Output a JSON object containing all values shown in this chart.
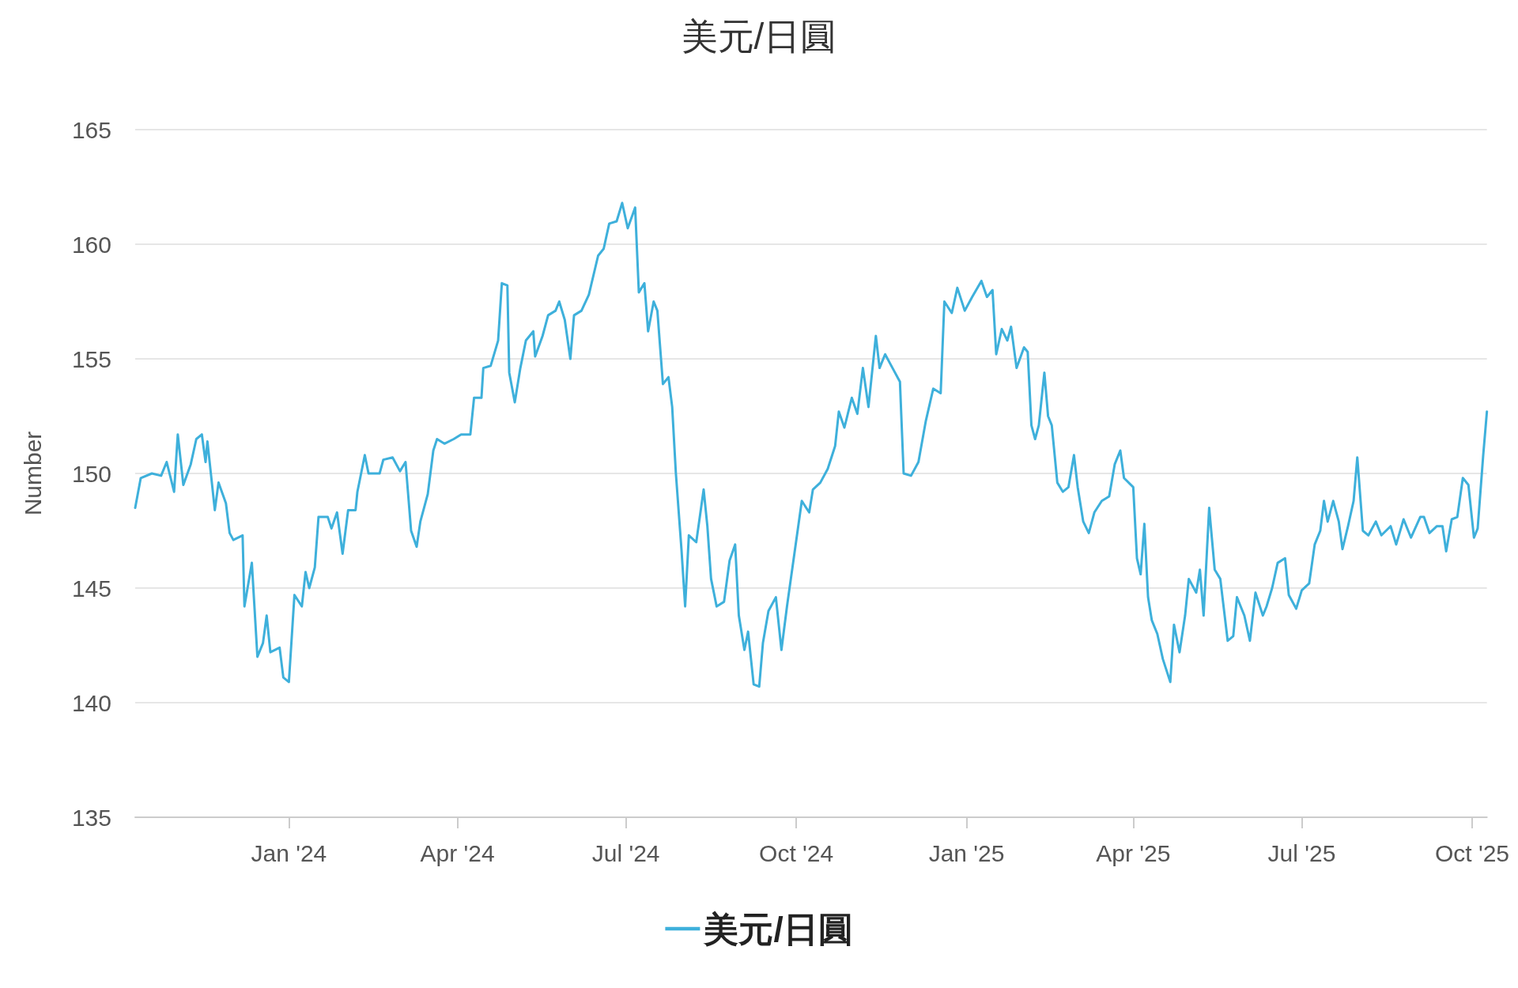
{
  "chart_data": {
    "type": "line",
    "title": "美元/日圓",
    "ylabel": "Number",
    "xlim": [
      "2023-10-10",
      "2025-10-09"
    ],
    "xticks": [
      {
        "value": "2024-01-01",
        "label": "Jan '24"
      },
      {
        "value": "2024-04-01",
        "label": "Apr '24"
      },
      {
        "value": "2024-07-01",
        "label": "Jul '24"
      },
      {
        "value": "2024-10-01",
        "label": "Oct '24"
      },
      {
        "value": "2025-01-01",
        "label": "Jan '25"
      },
      {
        "value": "2025-04-01",
        "label": "Apr '25"
      },
      {
        "value": "2025-07-01",
        "label": "Jul '25"
      },
      {
        "value": "2025-10-01",
        "label": "Oct '25"
      }
    ],
    "ylim": [
      135,
      165
    ],
    "yticks": [
      135,
      140,
      145,
      150,
      155,
      160,
      165
    ],
    "grid": "y",
    "legend": "bottom",
    "marker": "none",
    "line_style": "solid",
    "series": [
      {
        "name": "美元/日圓",
        "color": "#3eb0db",
        "x": [
          "2023-10-10",
          "2023-10-13",
          "2023-10-19",
          "2023-10-24",
          "2023-10-27",
          "2023-10-31",
          "2023-11-02",
          "2023-11-05",
          "2023-11-09",
          "2023-11-12",
          "2023-11-15",
          "2023-11-17",
          "2023-11-18",
          "2023-11-22",
          "2023-11-24",
          "2023-11-28",
          "2023-11-30",
          "2023-12-02",
          "2023-12-07",
          "2023-12-08",
          "2023-12-12",
          "2023-12-15",
          "2023-12-18",
          "2023-12-20",
          "2023-12-22",
          "2023-12-27",
          "2023-12-29",
          "2024-01-01",
          "2024-01-04",
          "2024-01-08",
          "2024-01-10",
          "2024-01-12",
          "2024-01-15",
          "2024-01-17",
          "2024-01-22",
          "2024-01-24",
          "2024-01-27",
          "2024-01-30",
          "2024-02-02",
          "2024-02-06",
          "2024-02-07",
          "2024-02-11",
          "2024-02-13",
          "2024-02-19",
          "2024-02-21",
          "2024-02-26",
          "2024-03-01",
          "2024-03-04",
          "2024-03-07",
          "2024-03-10",
          "2024-03-12",
          "2024-03-16",
          "2024-03-19",
          "2024-03-21",
          "2024-03-25",
          "2024-03-30",
          "2024-04-03",
          "2024-04-08",
          "2024-04-10",
          "2024-04-14",
          "2024-04-15",
          "2024-04-19",
          "2024-04-23",
          "2024-04-25",
          "2024-04-28",
          "2024-04-29",
          "2024-05-02",
          "2024-05-05",
          "2024-05-08",
          "2024-05-12",
          "2024-05-13",
          "2024-05-17",
          "2024-05-20",
          "2024-05-24",
          "2024-05-26",
          "2024-05-29",
          "2024-06-01",
          "2024-06-03",
          "2024-06-07",
          "2024-06-11",
          "2024-06-16",
          "2024-06-19",
          "2024-06-22",
          "2024-06-26",
          "2024-06-29",
          "2024-07-02",
          "2024-07-06",
          "2024-07-08",
          "2024-07-11",
          "2024-07-13",
          "2024-07-16",
          "2024-07-18",
          "2024-07-21",
          "2024-07-24",
          "2024-07-26",
          "2024-07-28",
          "2024-07-31",
          "2024-08-02",
          "2024-08-04",
          "2024-08-08",
          "2024-08-12",
          "2024-08-14",
          "2024-08-16",
          "2024-08-19",
          "2024-08-23",
          "2024-08-26",
          "2024-08-29",
          "2024-08-31",
          "2024-09-03",
          "2024-09-05",
          "2024-09-08",
          "2024-09-11",
          "2024-09-13",
          "2024-09-16",
          "2024-09-20",
          "2024-09-23",
          "2024-09-26",
          "2024-10-04",
          "2024-10-08",
          "2024-10-10",
          "2024-10-14",
          "2024-10-18",
          "2024-10-22",
          "2024-10-24",
          "2024-10-27",
          "2024-10-31",
          "2024-11-03",
          "2024-11-06",
          "2024-11-09",
          "2024-11-13",
          "2024-11-15",
          "2024-11-18",
          "2024-11-22",
          "2024-11-26",
          "2024-11-28",
          "2024-12-02",
          "2024-12-06",
          "2024-12-10",
          "2024-12-14",
          "2024-12-18",
          "2024-12-20",
          "2024-12-24",
          "2024-12-27",
          "2024-12-31",
          "2025-01-04",
          "2025-01-09",
          "2025-01-12",
          "2025-01-15",
          "2025-01-17",
          "2025-01-20",
          "2025-01-23",
          "2025-01-25",
          "2025-01-28",
          "2025-02-01",
          "2025-02-03",
          "2025-02-05",
          "2025-02-07",
          "2025-02-09",
          "2025-02-12",
          "2025-02-14",
          "2025-02-16",
          "2025-02-19",
          "2025-02-22",
          "2025-02-25",
          "2025-02-28",
          "2025-03-02",
          "2025-03-05",
          "2025-03-08",
          "2025-03-11",
          "2025-03-15",
          "2025-03-19",
          "2025-03-22",
          "2025-03-25",
          "2025-03-27",
          "2025-04-01",
          "2025-04-03",
          "2025-04-05",
          "2025-04-07",
          "2025-04-09",
          "2025-04-11",
          "2025-04-14",
          "2025-04-17",
          "2025-04-21",
          "2025-04-23",
          "2025-04-26",
          "2025-04-29",
          "2025-05-01",
          "2025-05-05",
          "2025-05-07",
          "2025-05-09",
          "2025-05-12",
          "2025-05-15",
          "2025-05-18",
          "2025-05-22",
          "2025-05-25",
          "2025-05-27",
          "2025-05-31",
          "2025-06-03",
          "2025-06-06",
          "2025-06-10",
          "2025-06-12",
          "2025-06-15",
          "2025-06-18",
          "2025-06-22",
          "2025-06-24",
          "2025-06-28",
          "2025-07-01",
          "2025-07-05",
          "2025-07-08",
          "2025-07-11",
          "2025-07-13",
          "2025-07-15",
          "2025-07-18",
          "2025-07-21",
          "2025-07-23",
          "2025-07-26",
          "2025-07-29",
          "2025-07-31",
          "2025-08-03",
          "2025-08-06",
          "2025-08-10",
          "2025-08-13",
          "2025-08-18",
          "2025-08-21",
          "2025-08-25",
          "2025-08-29",
          "2025-09-03",
          "2025-09-05",
          "2025-09-08",
          "2025-09-12",
          "2025-09-15",
          "2025-09-17",
          "2025-09-20",
          "2025-09-23",
          "2025-09-26",
          "2025-09-29",
          "2025-10-02",
          "2025-10-04",
          "2025-10-07",
          "2025-10-09"
        ],
        "values": [
          148.5,
          149.8,
          150.0,
          149.9,
          150.5,
          149.2,
          151.7,
          149.5,
          150.4,
          151.5,
          151.7,
          150.5,
          151.4,
          148.4,
          149.6,
          148.7,
          147.4,
          147.1,
          147.3,
          144.2,
          146.1,
          142.0,
          142.6,
          143.8,
          142.2,
          142.4,
          141.1,
          140.9,
          144.7,
          144.2,
          145.7,
          145.0,
          145.9,
          148.1,
          148.1,
          147.6,
          148.3,
          146.5,
          148.4,
          148.4,
          149.2,
          150.8,
          150.0,
          150.0,
          150.6,
          150.7,
          150.1,
          150.5,
          147.5,
          146.8,
          147.9,
          149.1,
          151.0,
          151.5,
          151.3,
          151.5,
          151.7,
          151.7,
          153.3,
          153.3,
          154.6,
          154.7,
          155.8,
          158.3,
          158.2,
          154.4,
          153.1,
          154.6,
          155.8,
          156.2,
          155.1,
          156.0,
          156.9,
          157.1,
          157.5,
          156.7,
          155.0,
          156.9,
          157.1,
          157.8,
          159.5,
          159.8,
          160.9,
          161.0,
          161.8,
          160.7,
          161.6,
          157.9,
          158.3,
          156.2,
          157.5,
          157.1,
          153.9,
          154.2,
          152.9,
          150.0,
          146.7,
          144.2,
          147.3,
          147.0,
          149.3,
          147.7,
          145.4,
          144.2,
          144.4,
          146.2,
          146.9,
          143.8,
          142.3,
          143.1,
          140.8,
          140.7,
          142.6,
          144.0,
          144.6,
          142.3,
          144.2,
          148.8,
          148.3,
          149.3,
          149.6,
          150.2,
          151.2,
          152.7,
          152.0,
          153.3,
          152.6,
          154.6,
          152.9,
          156.0,
          154.6,
          155.2,
          154.6,
          154.0,
          150.0,
          149.9,
          150.5,
          152.3,
          153.7,
          153.5,
          157.5,
          157.0,
          158.1,
          157.1,
          157.7,
          158.4,
          157.7,
          158.0,
          155.2,
          156.3,
          155.8,
          156.4,
          154.6,
          155.5,
          155.3,
          152.1,
          151.5,
          152.1,
          154.4,
          152.5,
          152.1,
          149.6,
          149.2,
          149.4,
          150.8,
          149.4,
          147.9,
          147.4,
          148.3,
          148.8,
          149.0,
          150.4,
          151.0,
          149.8,
          149.4,
          146.3,
          145.6,
          147.8,
          144.6,
          143.6,
          143.0,
          141.9,
          140.9,
          143.4,
          142.2,
          143.8,
          145.4,
          144.8,
          145.8,
          143.8,
          148.5,
          145.8,
          145.4,
          142.7,
          142.9,
          144.6,
          143.8,
          142.7,
          144.8,
          143.8,
          144.2,
          145.0,
          146.1,
          146.3,
          144.7,
          144.1,
          144.9,
          145.2,
          146.9,
          147.5,
          148.8,
          147.9,
          148.8,
          147.9,
          146.7,
          147.7,
          148.8,
          150.7,
          147.5,
          147.3,
          147.9,
          147.3,
          147.7,
          146.9,
          148.0,
          147.2,
          148.1,
          148.1,
          147.4,
          147.7,
          147.7,
          146.6,
          148.0,
          148.1,
          149.8,
          149.5,
          147.2,
          147.6,
          150.8,
          152.7
        ]
      }
    ]
  }
}
